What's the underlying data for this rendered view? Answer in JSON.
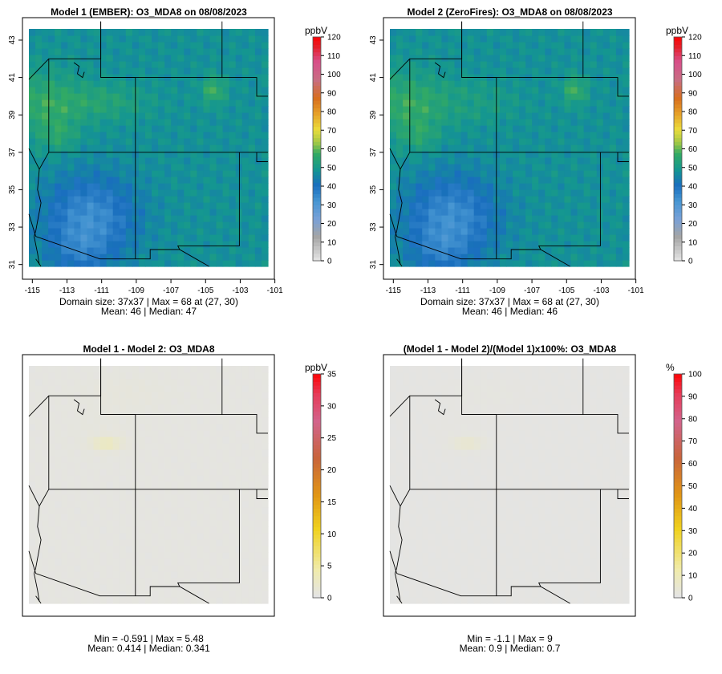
{
  "chart_data": [
    {
      "type": "heatmap",
      "title": "Model 1 (EMBER): O3_MDA8 on 08/08/2023",
      "xticks": [
        "-115",
        "-113",
        "-111",
        "-109",
        "-107",
        "-105",
        "-103",
        "-101"
      ],
      "yticks": [
        "31",
        "33",
        "35",
        "37",
        "39",
        "41",
        "43"
      ],
      "colorbar_title": "ppbV",
      "colorbar_ticks": [
        "0",
        "10",
        "20",
        "30",
        "40",
        "50",
        "60",
        "70",
        "80",
        "90",
        "100",
        "110",
        "120"
      ],
      "colorbar_range": [
        0,
        120
      ],
      "grid_size": "37x37",
      "stats_line1": "Domain size: 37x37 | Max = 68 at (27, 30)",
      "stats_line2": "Mean: 46 |  Median: 47",
      "mean": 46,
      "median": 47,
      "max": 68
    },
    {
      "type": "heatmap",
      "title": "Model 2 (ZeroFires): O3_MDA8 on 08/08/2023",
      "xticks": [
        "-115",
        "-113",
        "-111",
        "-109",
        "-107",
        "-105",
        "-103",
        "-101"
      ],
      "yticks": [
        "31",
        "33",
        "35",
        "37",
        "39",
        "41",
        "43"
      ],
      "colorbar_title": "ppbV",
      "colorbar_ticks": [
        "0",
        "10",
        "20",
        "30",
        "40",
        "50",
        "60",
        "70",
        "80",
        "90",
        "100",
        "110",
        "120"
      ],
      "colorbar_range": [
        0,
        120
      ],
      "grid_size": "37x37",
      "stats_line1": "Domain size: 37x37 | Max = 68 at (27, 30)",
      "stats_line2": "Mean: 46 |  Median: 46",
      "mean": 46,
      "median": 46,
      "max": 68
    },
    {
      "type": "heatmap",
      "title": "Model 1 - Model 2: O3_MDA8",
      "colorbar_title": "ppbV",
      "colorbar_ticks": [
        "0",
        "5",
        "10",
        "15",
        "20",
        "25",
        "30",
        "35"
      ],
      "colorbar_range": [
        0,
        35
      ],
      "stats_line1": "Min = -0.591 | Max = 5.48",
      "stats_line2": "Mean: 0.414 |  Median: 0.341",
      "min": -0.591,
      "max": 5.48,
      "mean": 0.414,
      "median": 0.341
    },
    {
      "type": "heatmap",
      "title": "(Model 1 - Model 2)/(Model 1)x100%: O3_MDA8",
      "colorbar_title": "%",
      "colorbar_ticks": [
        "0",
        "10",
        "20",
        "30",
        "40",
        "50",
        "60",
        "70",
        "80",
        "90",
        "100"
      ],
      "colorbar_range": [
        0,
        100
      ],
      "stats_line1": "Min = -1.1 | Max = 9",
      "stats_line2": "Mean: 0.9 |  Median: 0.7",
      "min": -1.1,
      "max": 9,
      "mean": 0.9,
      "median": 0.7
    }
  ]
}
